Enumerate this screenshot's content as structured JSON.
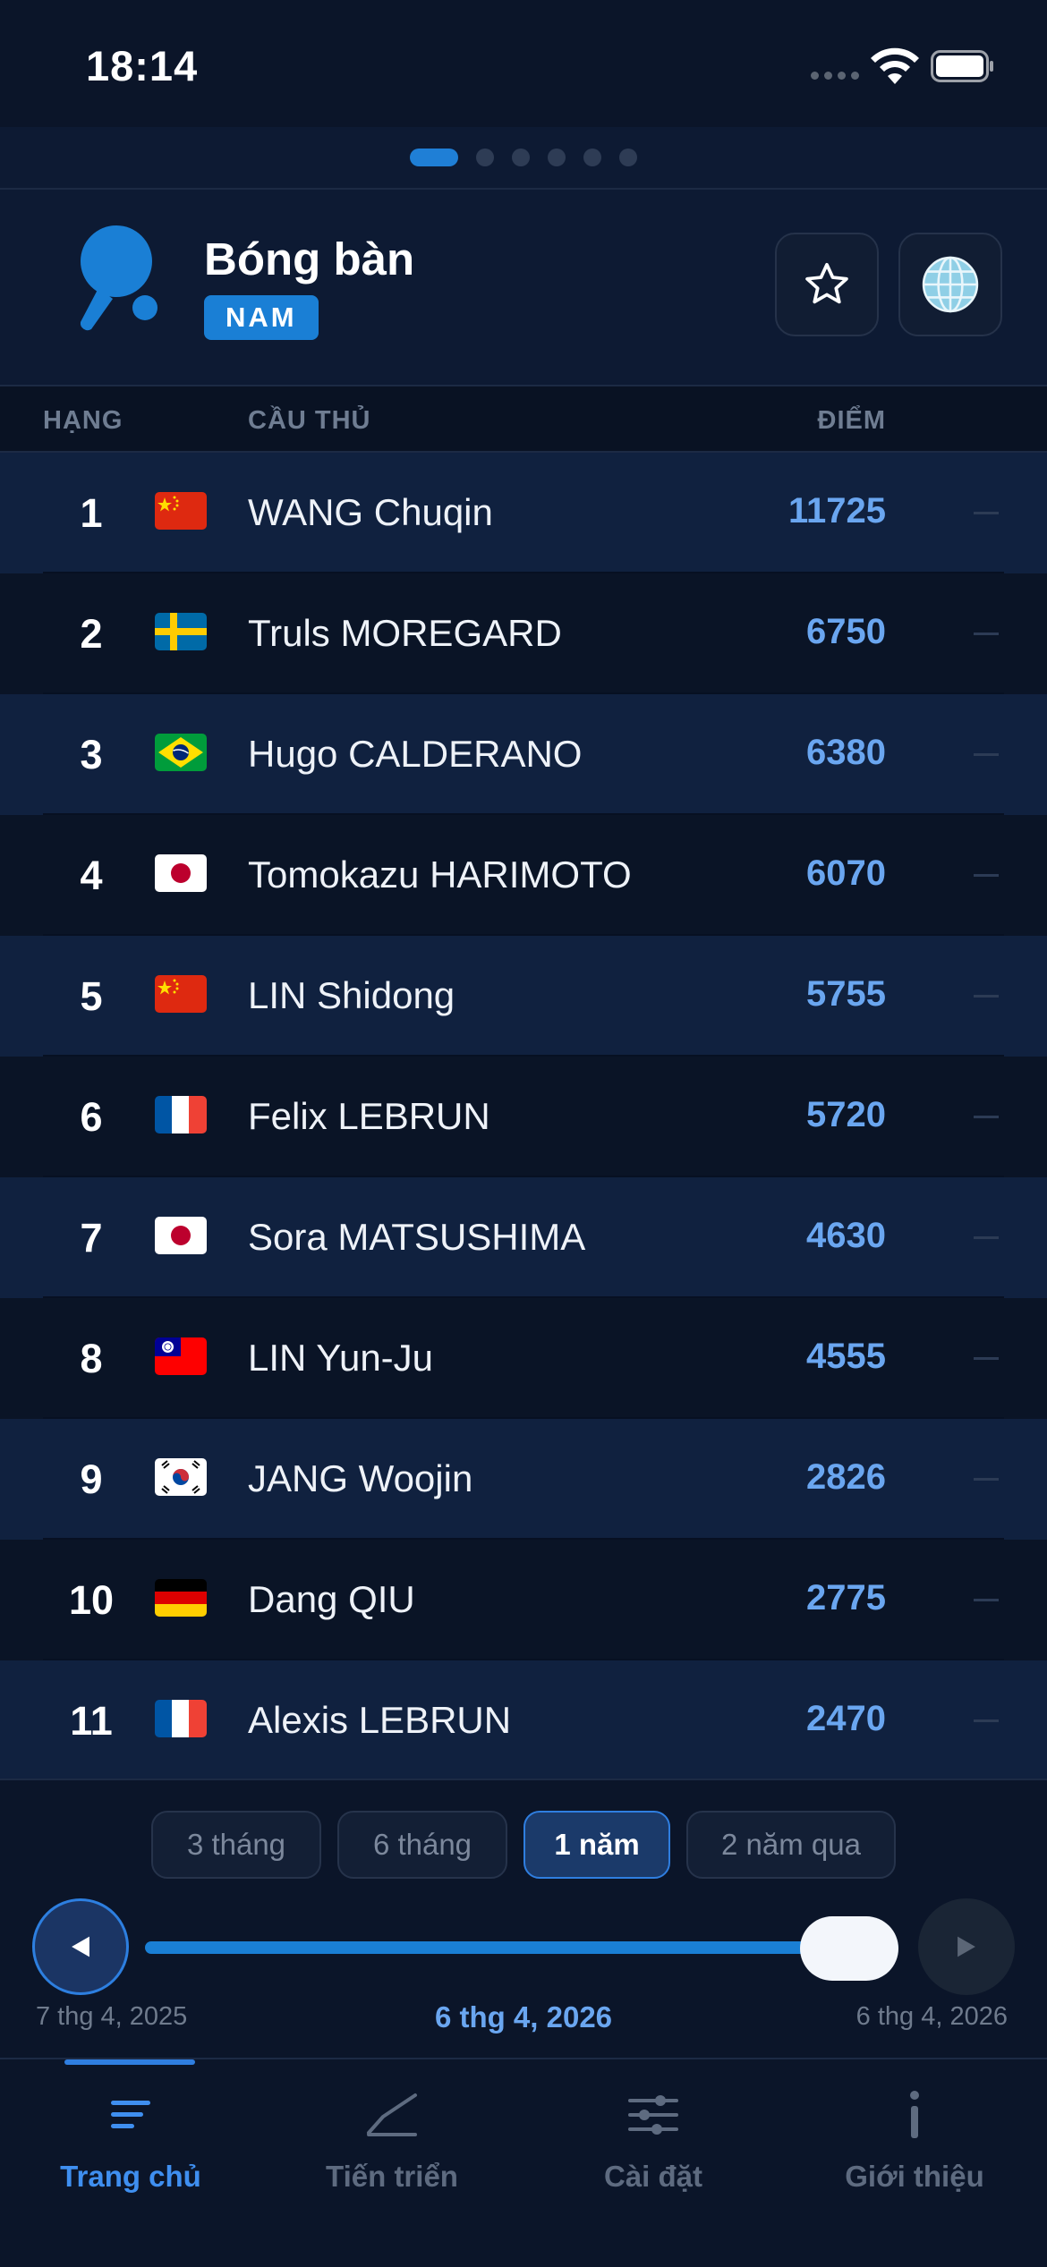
{
  "status_bar": {
    "time": "18:14"
  },
  "page_indicator": {
    "count": 6,
    "active_index": 0
  },
  "header": {
    "sport_title": "Bóng bàn",
    "gender_badge": "NAM"
  },
  "table": {
    "columns": {
      "rank": "HẠNG",
      "player": "CẦU THỦ",
      "points": "ĐIỂM"
    },
    "rows": [
      {
        "rank": "1",
        "flag": "china",
        "name": "WANG Chuqin",
        "points": "11725",
        "trend": "—"
      },
      {
        "rank": "2",
        "flag": "sweden",
        "name": "Truls MOREGARD",
        "points": "6750",
        "trend": "—"
      },
      {
        "rank": "3",
        "flag": "brazil",
        "name": "Hugo CALDERANO",
        "points": "6380",
        "trend": "—"
      },
      {
        "rank": "4",
        "flag": "japan",
        "name": "Tomokazu HARIMOTO",
        "points": "6070",
        "trend": "—"
      },
      {
        "rank": "5",
        "flag": "china",
        "name": "LIN Shidong",
        "points": "5755",
        "trend": "—"
      },
      {
        "rank": "6",
        "flag": "france",
        "name": "Felix LEBRUN",
        "points": "5720",
        "trend": "—"
      },
      {
        "rank": "7",
        "flag": "japan",
        "name": "Sora MATSUSHIMA",
        "points": "4630",
        "trend": "—"
      },
      {
        "rank": "8",
        "flag": "taiwan",
        "name": "LIN Yun-Ju",
        "points": "4555",
        "trend": "—"
      },
      {
        "rank": "9",
        "flag": "south-korea",
        "name": "JANG Woojin",
        "points": "2826",
        "trend": "—"
      },
      {
        "rank": "10",
        "flag": "germany",
        "name": "Dang QIU",
        "points": "2775",
        "trend": "—"
      },
      {
        "rank": "11",
        "flag": "france",
        "name": "Alexis LEBRUN",
        "points": "2470",
        "trend": "—"
      }
    ]
  },
  "period_chips": [
    {
      "label": "3 tháng",
      "active": false
    },
    {
      "label": "6 tháng",
      "active": false
    },
    {
      "label": "1 năm",
      "active": true
    },
    {
      "label": "2 năm qua",
      "active": false
    }
  ],
  "timeline": {
    "start_date": "7 thg 4, 2025",
    "current_date": "6 thg 4, 2026",
    "end_date": "6 thg 4, 2026",
    "position": 1.0
  },
  "tab_bar": {
    "items": [
      {
        "label": "Trang chủ",
        "icon": "list-icon",
        "active": true
      },
      {
        "label": "Tiến triển",
        "icon": "chart-icon",
        "active": false
      },
      {
        "label": "Cài đặt",
        "icon": "sliders-icon",
        "active": false
      },
      {
        "label": "Giới thiệu",
        "icon": "info-icon",
        "active": false
      }
    ]
  },
  "colors": {
    "accent": "#1a7fd5",
    "points": "#6aa6f0",
    "background": "#0a1426",
    "row_alt": "#10213f"
  }
}
